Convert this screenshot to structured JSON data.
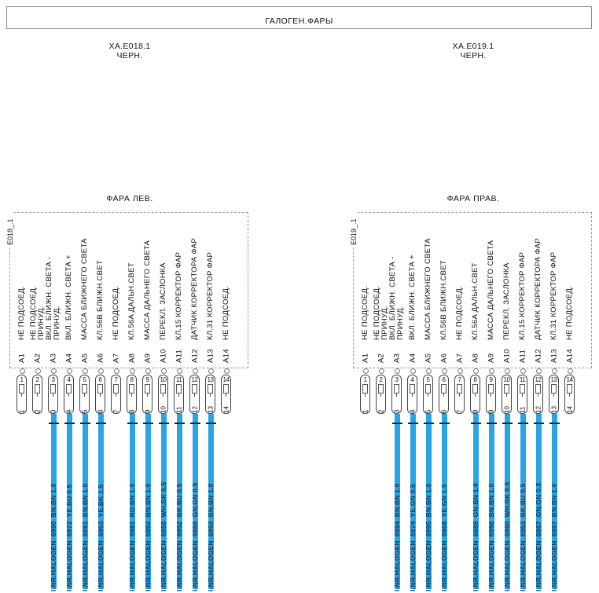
{
  "title": "ГАЛОГЕН.ФАРЫ",
  "colors": {
    "wire": "#27a5e6",
    "wire_label_text": "#123a5c",
    "line_gray": "#9b9b9b"
  },
  "blocks": [
    {
      "side": "left",
      "connector_label": "XA.E018.1",
      "connector_sublabel": "ЧЕРН.",
      "block_label": "ФАРА ЛЕВ.",
      "edge_label": "E018_.1",
      "pins": [
        {
          "pin": "A1",
          "terminal": "1",
          "function_lines": [
            "НЕ ПОДСОЕД."
          ],
          "wire_label": null
        },
        {
          "pin": "A2",
          "terminal": "2",
          "function_lines": [
            "НЕ ПОДСОЕД.",
            "ПРИНУД."
          ],
          "wire_label": null
        },
        {
          "pin": "A3",
          "terminal": "3",
          "function_lines": [
            "ВКЛ. БЛИЖН. СВЕТА -",
            "ПРИНУД."
          ],
          "wire_label": "I-NR.HALOGEN  6990  BN.BN 1.0"
        },
        {
          "pin": "A4",
          "terminal": "4",
          "function_lines": [
            "ВКЛ. БЛИЖН. СВЕТА +"
          ],
          "wire_label": "I-NR.HALOGEN  6972  YE.BU 0.5"
        },
        {
          "pin": "A5",
          "terminal": "5",
          "function_lines": [
            "МАССА БЛИЖНЕГО СВЕТА"
          ],
          "wire_label": "I-NR.HALOGEN  6991  BN.BN 1.0"
        },
        {
          "pin": "A6",
          "terminal": "6",
          "function_lines": [
            "КЛ.56B БЛИЖН.СВЕТ"
          ],
          "wire_label": "I-NR.HALOGEN  6963  YE.BK 1.5"
        },
        {
          "pin": "A7",
          "terminal": "7",
          "function_lines": [
            "НЕ ПОДСОЕД."
          ],
          "wire_label": null
        },
        {
          "pin": "A8",
          "terminal": "8",
          "function_lines": [
            "КЛ.56A ДАЛЬН.СВЕТ"
          ],
          "wire_label": "I-NR.HALOGEN  6981  RD.BN 1.0"
        },
        {
          "pin": "A9",
          "terminal": "9",
          "function_lines": [
            "МАССА ДАЛЬНЕГО СВЕТА"
          ],
          "wire_label": "I-NR.HALOGEN  6992  BN.BN 1.0"
        },
        {
          "pin": "A10",
          "terminal": "10",
          "function_lines": [
            "ПЕРЕКЛ. ЗАСЛОНКА"
          ],
          "wire_label": "I-NR.HALOGEN  6959  WH.BK 0.5"
        },
        {
          "pin": "A11",
          "terminal": "11",
          "function_lines": [
            "КЛ.15 КОРРЕКТОР ФАР"
          ],
          "wire_label": "I-NR.HALOGEN  6952  BK.BU 0.5"
        },
        {
          "pin": "A12",
          "terminal": "12",
          "function_lines": [
            "ДАТЧИК КОРРЕКТОРА ФАР"
          ],
          "wire_label": "I-NR.HALOGEN  6966  GN.GN 0.5"
        },
        {
          "pin": "A13",
          "terminal": "13",
          "function_lines": [
            "КЛ.31 КОРРЕКТОР ФАР"
          ],
          "wire_label": "I-NR.HALOGEN  6993  BN.BN 1.0"
        },
        {
          "pin": "A14",
          "terminal": "14",
          "function_lines": [
            "НЕ ПОДСОЕД."
          ],
          "wire_label": null
        }
      ]
    },
    {
      "side": "right",
      "connector_label": "XA.E019.1",
      "connector_sublabel": "ЧЕРН.",
      "block_label": "ФАРА ПРАВ.",
      "edge_label": "E019_.1",
      "pins": [
        {
          "pin": "A1",
          "terminal": "1",
          "function_lines": [
            "НЕ ПОДСОЕД."
          ],
          "wire_label": null
        },
        {
          "pin": "A2",
          "terminal": "2",
          "function_lines": [
            "НЕ ПОДСОЕД.",
            "ПРИНУД."
          ],
          "wire_label": null
        },
        {
          "pin": "A3",
          "terminal": "3",
          "function_lines": [
            "ВКЛ. БЛИЖН. СВЕТА -",
            "ПРИНУД."
          ],
          "wire_label": "I-NR.HALOGEN  6994  BN.BN 1.0"
        },
        {
          "pin": "A4",
          "terminal": "4",
          "function_lines": [
            "ВКЛ. БЛИЖН. СВЕТА +"
          ],
          "wire_label": "I-NR.HALOGEN  6974  YE.GN 0.5"
        },
        {
          "pin": "A5",
          "terminal": "5",
          "function_lines": [
            "МАССА БЛИЖНЕГО СВЕТА"
          ],
          "wire_label": "I-NR.HALOGEN  6995  BN.BN 1.0"
        },
        {
          "pin": "A6",
          "terminal": "6",
          "function_lines": [
            "КЛ.56B БЛИЖН.СВЕТ"
          ],
          "wire_label": "I-NR.HALOGEN  6968  YE.GN 1.5"
        },
        {
          "pin": "A7",
          "terminal": "7",
          "function_lines": [
            "НЕ ПОДСОЕД."
          ],
          "wire_label": null
        },
        {
          "pin": "A8",
          "terminal": "8",
          "function_lines": [
            "КЛ.56A ДАЛЬН.СВЕТ"
          ],
          "wire_label": "I-NR.HALOGEN  6989  GN.BN 1.0"
        },
        {
          "pin": "A9",
          "terminal": "9",
          "function_lines": [
            "МАССА ДАЛЬНЕГО СВЕТА"
          ],
          "wire_label": "I-NR.HALOGEN  6996  BN.BN 1.0"
        },
        {
          "pin": "A10",
          "terminal": "10",
          "function_lines": [
            "ПЕРЕКЛ. ЗАСЛОНКА"
          ],
          "wire_label": "I-NR.HALOGEN  6960  WH.BK 0.5"
        },
        {
          "pin": "A11",
          "terminal": "11",
          "function_lines": [
            "КЛ.15 КОРРЕКТОР ФАР"
          ],
          "wire_label": "I-NR.HALOGEN  6953  BK.BU 0.5"
        },
        {
          "pin": "A12",
          "terminal": "12",
          "function_lines": [
            "ДАТЧИК КОРРЕКТОРА ФАР"
          ],
          "wire_label": "I-NR.HALOGEN  6967  GN.GN 0.5"
        },
        {
          "pin": "A13",
          "terminal": "13",
          "function_lines": [
            "КЛ.31 КОРРЕКТОР ФАР"
          ],
          "wire_label": "I-NR.HALOGEN  6997  BN.BN 1.0"
        },
        {
          "pin": "A14",
          "terminal": "14",
          "function_lines": [
            "НЕ ПОДСОЕД."
          ],
          "wire_label": null
        }
      ]
    }
  ]
}
